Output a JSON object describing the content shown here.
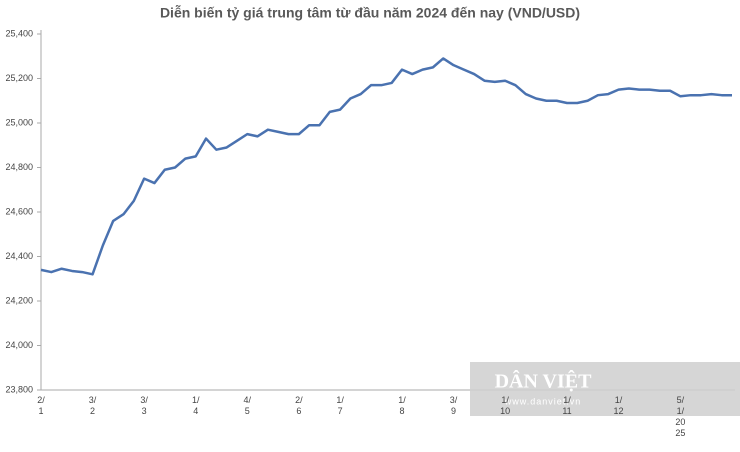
{
  "chart_data": {
    "type": "line",
    "title": "Diễn biến tỷ giá trung tâm từ đầu năm 2024 đến nay (VND/USD)",
    "categories": [
      "2/\n1",
      null,
      null,
      null,
      null,
      "3/\n2",
      null,
      null,
      null,
      null,
      "3/\n3",
      null,
      null,
      null,
      null,
      "1/\n4",
      null,
      null,
      null,
      null,
      "4/\n5",
      null,
      null,
      null,
      null,
      "2/\n6",
      null,
      null,
      null,
      "1/\n7",
      null,
      null,
      null,
      null,
      null,
      "1/\n8",
      null,
      null,
      null,
      null,
      "3/\n9",
      null,
      null,
      null,
      null,
      "1/\n10",
      null,
      null,
      null,
      null,
      null,
      "1/\n11",
      null,
      null,
      null,
      null,
      "1/\n12",
      null,
      null,
      null,
      null,
      null,
      "5/\n1/\n20\n25",
      null,
      null,
      null,
      null,
      null
    ],
    "values": [
      24340,
      24330,
      24345,
      24335,
      24330,
      24320,
      24450,
      24560,
      24590,
      24650,
      24750,
      24730,
      24790,
      24800,
      24840,
      24850,
      24930,
      24880,
      24890,
      24920,
      24950,
      24940,
      24970,
      24960,
      24950,
      24950,
      24990,
      24990,
      25050,
      25060,
      25110,
      25130,
      25170,
      25170,
      25180,
      25240,
      25220,
      25240,
      25250,
      25290,
      25260,
      25240,
      25220,
      25190,
      25185,
      25190,
      25170,
      25130,
      25110,
      25100,
      25100,
      25090,
      25090,
      25100,
      25125,
      25130,
      25150,
      25155,
      25150,
      25150,
      25145,
      25145,
      25120,
      25125,
      25125,
      25130,
      25125,
      25125
    ],
    "color": "#4a72b0",
    "ylim": [
      23800,
      25400
    ],
    "yticks": [
      {
        "value": 23800,
        "label": "23,800"
      },
      {
        "value": 24000,
        "label": "24,000"
      },
      {
        "value": 24200,
        "label": "24,200"
      },
      {
        "value": 24400,
        "label": "24,400"
      },
      {
        "value": 24600,
        "label": "24,600"
      },
      {
        "value": 24800,
        "label": "24,800"
      },
      {
        "value": 25000,
        "label": "25,000"
      },
      {
        "value": 25200,
        "label": "25,200"
      },
      {
        "value": 25400,
        "label": "25,400"
      }
    ],
    "grid": false
  },
  "watermark": {
    "brand": "DÂN VIỆT",
    "url": "www.danviet.vn"
  }
}
